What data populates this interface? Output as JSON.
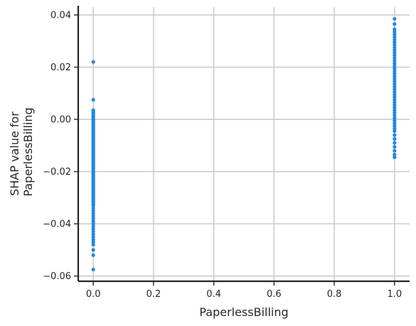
{
  "chart_data": {
    "type": "scatter",
    "xlabel": "PaperlessBilling",
    "ylabel_lines": [
      "SHAP value for",
      "PaperlessBilling"
    ],
    "xlim": [
      -0.05,
      1.05
    ],
    "ylim": [
      -0.062,
      0.043
    ],
    "x_ticks": [
      0.0,
      0.2,
      0.4,
      0.6,
      0.8,
      1.0
    ],
    "x_tick_labels": [
      "0.0",
      "0.2",
      "0.4",
      "0.6",
      "0.8",
      "1.0"
    ],
    "y_ticks": [
      -0.06,
      -0.04,
      -0.02,
      0.0,
      0.02,
      0.04
    ],
    "y_tick_labels": [
      "−0.06",
      "−0.04",
      "−0.02",
      "0.00",
      "0.02",
      "0.04"
    ],
    "grid": true,
    "point_color": "#1e88e5",
    "series": [
      {
        "x": 0,
        "y": [
          0.022,
          0.0075,
          0.0035,
          0.003,
          0.0025,
          0.002,
          0.0015,
          0.001,
          0.0005,
          0.0,
          -0.0005,
          -0.001,
          -0.0015,
          -0.002,
          -0.0025,
          -0.003,
          -0.0035,
          -0.004,
          -0.0045,
          -0.005,
          -0.0055,
          -0.006,
          -0.0065,
          -0.007,
          -0.0075,
          -0.008,
          -0.0085,
          -0.009,
          -0.0095,
          -0.01,
          -0.0105,
          -0.011,
          -0.0115,
          -0.012,
          -0.0125,
          -0.013,
          -0.0135,
          -0.014,
          -0.0145,
          -0.015,
          -0.0155,
          -0.016,
          -0.0165,
          -0.017,
          -0.0175,
          -0.018,
          -0.0185,
          -0.019,
          -0.0195,
          -0.02,
          -0.0205,
          -0.021,
          -0.0215,
          -0.022,
          -0.0225,
          -0.023,
          -0.0235,
          -0.024,
          -0.0245,
          -0.025,
          -0.0255,
          -0.026,
          -0.0265,
          -0.027,
          -0.0275,
          -0.028,
          -0.0285,
          -0.029,
          -0.0295,
          -0.03,
          -0.0305,
          -0.031,
          -0.0315,
          -0.032,
          -0.0325,
          -0.033,
          -0.034,
          -0.035,
          -0.036,
          -0.037,
          -0.038,
          -0.039,
          -0.04,
          -0.041,
          -0.042,
          -0.043,
          -0.044,
          -0.045,
          -0.046,
          -0.047,
          -0.048,
          -0.05,
          -0.052,
          -0.0575
        ]
      },
      {
        "x": 1,
        "y": [
          0.0385,
          0.0365,
          0.0345,
          0.0335,
          0.0325,
          0.0315,
          0.0305,
          0.0295,
          0.0285,
          0.0275,
          0.0265,
          0.0255,
          0.0245,
          0.0235,
          0.0225,
          0.0215,
          0.0205,
          0.0195,
          0.0185,
          0.0175,
          0.0165,
          0.0155,
          0.0145,
          0.0135,
          0.0125,
          0.0115,
          0.0105,
          0.0095,
          0.0085,
          0.0075,
          0.0065,
          0.0055,
          0.0045,
          0.0035,
          0.0025,
          0.0015,
          0.0005,
          -0.0005,
          -0.0015,
          -0.0025,
          -0.0035,
          -0.0045,
          -0.006,
          -0.0075,
          -0.009,
          -0.0105,
          -0.012,
          -0.0135,
          -0.0145
        ]
      }
    ]
  }
}
